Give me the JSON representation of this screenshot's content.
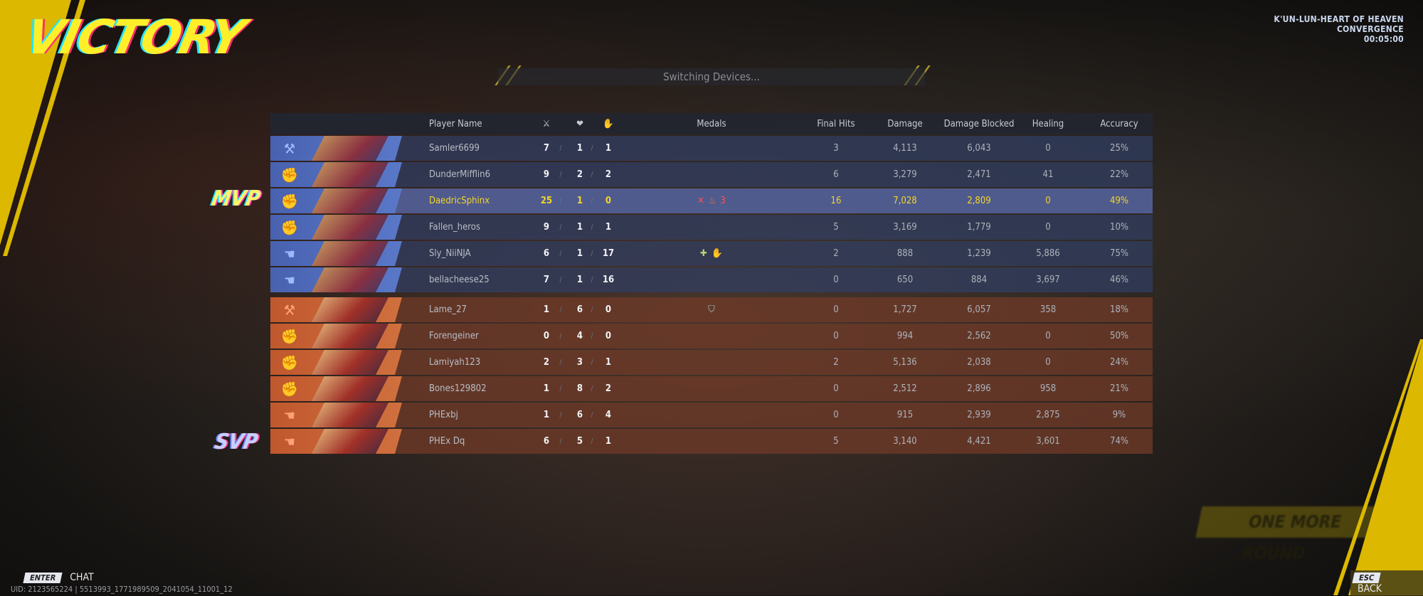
{
  "result_title": "VICTORY",
  "map": {
    "name": "K'UN-LUN-HEART OF HEAVEN",
    "mode": "CONVERGENCE",
    "duration": "00:05:00"
  },
  "status": "Switching Devices...",
  "headers": {
    "player_name": "Player Name",
    "kills_icon": "crossed-swords-icon",
    "deaths_icon": "broken-heart-icon",
    "assists_icon": "assist-hands-icon",
    "medals": "Medals",
    "final_hits": "Final Hits",
    "damage": "Damage",
    "damage_blocked": "Damage Blocked",
    "healing": "Healing",
    "accuracy": "Accuracy"
  },
  "badges": {
    "mvp": "MVP",
    "svp": "SVP"
  },
  "colors": {
    "ally": "#4862b0",
    "enemy": "#c0582e",
    "highlight": "#f2d62a",
    "accent": "#dcb800"
  },
  "team_blue": [
    {
      "role": "vanguard",
      "name": "Samler6699",
      "k": "7",
      "d": "1",
      "a": "1",
      "medals": [],
      "final_hits": "3",
      "damage": "4,113",
      "blocked": "6,043",
      "healing": "0",
      "accuracy": "25%"
    },
    {
      "role": "duelist",
      "name": "DunderMifflin6",
      "k": "9",
      "d": "2",
      "a": "2",
      "medals": [],
      "final_hits": "6",
      "damage": "3,279",
      "blocked": "2,471",
      "healing": "41",
      "accuracy": "22%"
    },
    {
      "role": "duelist",
      "name": "DaedricSphinx",
      "k": "25",
      "d": "1",
      "a": "0",
      "medals": [
        "kills-medal",
        "fire-medal",
        "streak-medal"
      ],
      "final_hits": "16",
      "damage": "7,028",
      "blocked": "2,809",
      "healing": "0",
      "accuracy": "49%",
      "mvp": true
    },
    {
      "role": "duelist",
      "name": "Fallen_heros",
      "k": "9",
      "d": "1",
      "a": "1",
      "medals": [],
      "final_hits": "5",
      "damage": "3,169",
      "blocked": "1,779",
      "healing": "0",
      "accuracy": "10%"
    },
    {
      "role": "strategist",
      "name": "Sly_NiiNJA",
      "k": "6",
      "d": "1",
      "a": "17",
      "medals": [
        "healing-medal",
        "assist-medal"
      ],
      "final_hits": "2",
      "damage": "888",
      "blocked": "1,239",
      "healing": "5,886",
      "accuracy": "75%"
    },
    {
      "role": "strategist",
      "name": "bellacheese25",
      "k": "7",
      "d": "1",
      "a": "16",
      "medals": [],
      "final_hits": "0",
      "damage": "650",
      "blocked": "884",
      "healing": "3,697",
      "accuracy": "46%"
    }
  ],
  "team_red": [
    {
      "role": "vanguard",
      "name": "Lame_27",
      "k": "1",
      "d": "6",
      "a": "0",
      "medals": [
        "shield-medal"
      ],
      "final_hits": "0",
      "damage": "1,727",
      "blocked": "6,057",
      "healing": "358",
      "accuracy": "18%"
    },
    {
      "role": "duelist",
      "name": "Forengeiner",
      "k": "0",
      "d": "4",
      "a": "0",
      "medals": [],
      "final_hits": "0",
      "damage": "994",
      "blocked": "2,562",
      "healing": "0",
      "accuracy": "50%"
    },
    {
      "role": "duelist",
      "name": "Lamiyah123",
      "k": "2",
      "d": "3",
      "a": "1",
      "medals": [],
      "final_hits": "2",
      "damage": "5,136",
      "blocked": "2,038",
      "healing": "0",
      "accuracy": "24%"
    },
    {
      "role": "duelist",
      "name": "Bones129802",
      "k": "1",
      "d": "8",
      "a": "2",
      "medals": [],
      "final_hits": "0",
      "damage": "2,512",
      "blocked": "2,896",
      "healing": "958",
      "accuracy": "21%"
    },
    {
      "role": "strategist",
      "name": "PHExbj",
      "k": "1",
      "d": "6",
      "a": "4",
      "medals": [],
      "final_hits": "0",
      "damage": "915",
      "blocked": "2,939",
      "healing": "2,875",
      "accuracy": "9%"
    },
    {
      "role": "strategist",
      "name": "PHEx Dq",
      "k": "6",
      "d": "5",
      "a": "1",
      "medals": [],
      "final_hits": "5",
      "damage": "3,140",
      "blocked": "4,421",
      "healing": "3,601",
      "accuracy": "74%",
      "svp": true
    }
  ],
  "background_button": "ONE MORE ROUND",
  "footer": {
    "enter_key": "ENTER",
    "chat": "CHAT",
    "esc_key": "ESC",
    "back": "BACK",
    "uid": "UID: 2123565224 | 5513993_1771989509_2041054_11001_12"
  }
}
